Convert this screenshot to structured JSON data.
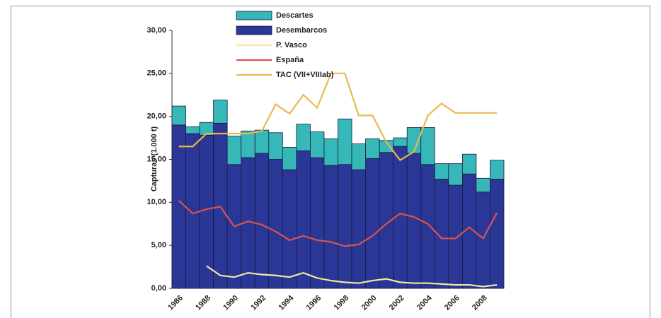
{
  "chart_data": {
    "type": "bar",
    "stacked": true,
    "y_label": "Capturas (1.000 t)",
    "categories": [
      "1986",
      null,
      "1988",
      null,
      "1990",
      null,
      "1992",
      null,
      "1994",
      null,
      "1996",
      null,
      "1998",
      null,
      "2000",
      null,
      "2002",
      null,
      "2004",
      null,
      "2006",
      null,
      "2008",
      null
    ],
    "series": [
      {
        "name": "Descartes",
        "type": "bar",
        "color": "#36b8b8",
        "values": [
          2.2,
          0.8,
          1.5,
          2.7,
          3.3,
          3.1,
          2.7,
          3.1,
          2.6,
          3.1,
          3.0,
          3.1,
          5.3,
          3.0,
          2.3,
          1.4,
          1.0,
          3.0,
          4.3,
          1.8,
          2.5,
          2.3,
          1.6,
          2.2
        ]
      },
      {
        "name": "Desembarcos",
        "type": "bar",
        "color": "#2b3796",
        "values": [
          19.0,
          18.0,
          17.8,
          19.2,
          14.4,
          15.2,
          15.7,
          15.0,
          13.8,
          16.0,
          15.2,
          14.3,
          14.4,
          13.8,
          15.1,
          15.8,
          16.5,
          15.7,
          14.4,
          12.7,
          12.0,
          13.3,
          11.2,
          12.7
        ]
      },
      {
        "name": "P. Vasco",
        "type": "line",
        "color": "#f3e9a0",
        "values": [
          null,
          null,
          2.6,
          1.5,
          1.3,
          1.8,
          1.6,
          1.5,
          1.3,
          1.8,
          1.2,
          0.9,
          0.7,
          0.6,
          0.9,
          1.1,
          0.7,
          0.6,
          0.6,
          0.5,
          0.4,
          0.4,
          0.2,
          0.4
        ]
      },
      {
        "name": "España",
        "type": "line",
        "color": "#d9534f",
        "values": [
          10.2,
          8.7,
          9.2,
          9.5,
          7.2,
          7.8,
          7.4,
          6.6,
          5.6,
          6.1,
          5.6,
          5.4,
          4.9,
          5.1,
          6.1,
          7.5,
          8.7,
          8.3,
          7.5,
          5.8,
          5.8,
          7.1,
          5.8,
          8.8
        ]
      },
      {
        "name": "TAC (VII+VIIIab)",
        "type": "line",
        "color": "#e9b94c",
        "values": [
          16.5,
          16.5,
          18.0,
          18.0,
          18.0,
          18.0,
          18.3,
          21.4,
          20.3,
          22.5,
          21.0,
          25.0,
          25.0,
          20.1,
          20.1,
          17.0,
          14.9,
          15.9,
          20.1,
          21.5,
          20.4,
          20.4,
          20.4,
          20.4
        ]
      }
    ],
    "ylim": [
      0,
      30
    ],
    "yticks": [
      {
        "value": 0,
        "label": "0,00"
      },
      {
        "value": 5,
        "label": "5,00"
      },
      {
        "value": 10,
        "label": "10,00"
      },
      {
        "value": 15,
        "label": "15,00"
      },
      {
        "value": 20,
        "label": "20,00"
      },
      {
        "value": 25,
        "label": "25,00"
      },
      {
        "value": 30,
        "label": "30,00"
      }
    ]
  }
}
